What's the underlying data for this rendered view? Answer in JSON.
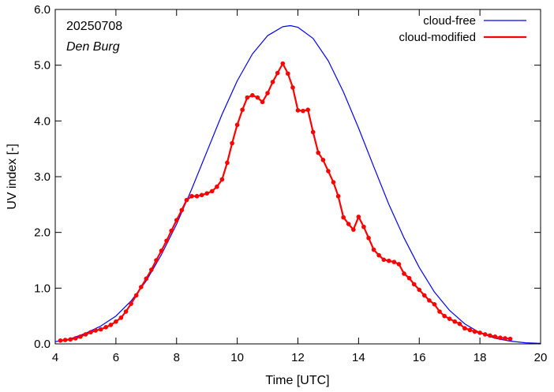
{
  "chart_data": {
    "type": "line",
    "title": "",
    "xlabel": "Time  [UTC]",
    "ylabel": "UV index  [-]",
    "xlim": [
      4,
      20
    ],
    "ylim": [
      0,
      6
    ],
    "xticks": [
      4,
      6,
      8,
      10,
      12,
      14,
      16,
      18,
      20
    ],
    "xtick_labels": [
      "4",
      "6",
      "8",
      "10",
      "12",
      "14",
      "16",
      "18",
      "20"
    ],
    "yticks": [
      0,
      1,
      2,
      3,
      4,
      5,
      6
    ],
    "ytick_labels": [
      "0.0",
      "1.0",
      "2.0",
      "3.0",
      "4.0",
      "5.0",
      "6.0"
    ],
    "grid": false,
    "legend_position": "top-right",
    "annotations": {
      "date": "20250708",
      "station": "Den Burg"
    },
    "series": [
      {
        "name": "cloud-free",
        "color": "#0000ff",
        "markers": false,
        "x": [
          4.0,
          4.5,
          5.0,
          5.5,
          6.0,
          6.5,
          7.0,
          7.5,
          8.0,
          8.5,
          9.0,
          9.5,
          10.0,
          10.5,
          11.0,
          11.5,
          11.75,
          12.0,
          12.5,
          13.0,
          13.5,
          14.0,
          14.5,
          15.0,
          15.5,
          16.0,
          16.5,
          17.0,
          17.5,
          18.0,
          18.5,
          19.0,
          19.5,
          20.0
        ],
        "y": [
          0.04,
          0.09,
          0.19,
          0.32,
          0.5,
          0.77,
          1.13,
          1.6,
          2.15,
          2.78,
          3.45,
          4.12,
          4.72,
          5.2,
          5.53,
          5.69,
          5.71,
          5.68,
          5.48,
          5.08,
          4.52,
          3.87,
          3.18,
          2.5,
          1.9,
          1.37,
          0.93,
          0.6,
          0.36,
          0.2,
          0.1,
          0.05,
          0.02,
          0.01
        ]
      },
      {
        "name": "cloud-modified",
        "color": "#ff0000",
        "markers": true,
        "x": [
          4.17,
          4.33,
          4.5,
          4.67,
          4.83,
          5.0,
          5.17,
          5.33,
          5.5,
          5.67,
          5.83,
          6.0,
          6.17,
          6.33,
          6.5,
          6.67,
          6.83,
          7.0,
          7.17,
          7.33,
          7.5,
          7.67,
          7.83,
          8.0,
          8.17,
          8.33,
          8.5,
          8.67,
          8.83,
          9.0,
          9.17,
          9.33,
          9.5,
          9.67,
          9.83,
          10.0,
          10.17,
          10.33,
          10.5,
          10.67,
          10.83,
          11.0,
          11.17,
          11.33,
          11.5,
          11.67,
          11.83,
          12.0,
          12.17,
          12.33,
          12.5,
          12.67,
          12.83,
          13.0,
          13.17,
          13.33,
          13.5,
          13.67,
          13.83,
          14.0,
          14.17,
          14.33,
          14.5,
          14.67,
          14.83,
          15.0,
          15.17,
          15.33,
          15.5,
          15.67,
          15.83,
          16.0,
          16.17,
          16.33,
          16.5,
          16.67,
          16.83,
          17.0,
          17.17,
          17.33,
          17.5,
          17.67,
          17.83,
          18.0,
          18.17,
          18.33,
          18.5,
          18.67,
          18.83,
          19.0
        ],
        "y": [
          0.06,
          0.07,
          0.08,
          0.1,
          0.13,
          0.17,
          0.21,
          0.24,
          0.26,
          0.3,
          0.34,
          0.4,
          0.47,
          0.58,
          0.72,
          0.87,
          1.02,
          1.17,
          1.33,
          1.5,
          1.67,
          1.85,
          2.03,
          2.22,
          2.4,
          2.58,
          2.65,
          2.65,
          2.67,
          2.7,
          2.74,
          2.82,
          2.95,
          3.25,
          3.6,
          3.93,
          4.2,
          4.42,
          4.46,
          4.42,
          4.34,
          4.5,
          4.7,
          4.86,
          5.03,
          4.85,
          4.6,
          4.19,
          4.18,
          4.2,
          3.8,
          3.43,
          3.3,
          3.1,
          2.9,
          2.65,
          2.27,
          2.15,
          2.05,
          2.28,
          2.1,
          1.9,
          1.69,
          1.59,
          1.51,
          1.49,
          1.47,
          1.43,
          1.26,
          1.18,
          1.07,
          0.97,
          0.87,
          0.78,
          0.71,
          0.58,
          0.5,
          0.45,
          0.4,
          0.36,
          0.28,
          0.25,
          0.22,
          0.2,
          0.17,
          0.15,
          0.13,
          0.11,
          0.1,
          0.09
        ]
      }
    ]
  }
}
